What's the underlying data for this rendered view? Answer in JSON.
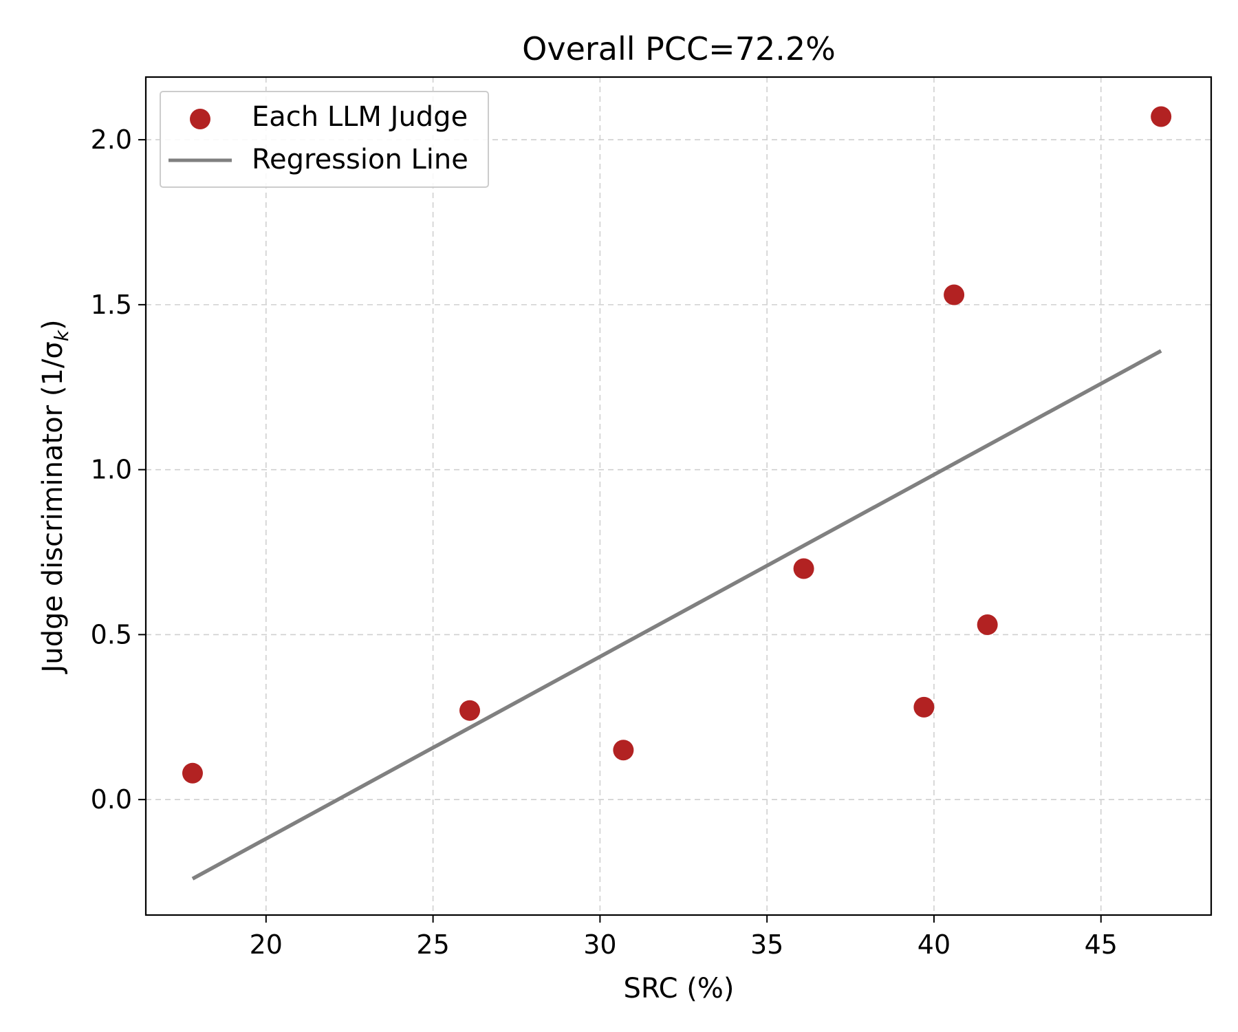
{
  "chart_data": {
    "type": "scatter",
    "title": "Overall PCC=72.2%",
    "xlabel": "SRC (%)",
    "ylabel": "Judge discriminator (1/σ",
    "ylabel_subscript": "k",
    "ylabel_suffix": ")",
    "xlim": [
      16.4,
      48.3
    ],
    "ylim": [
      -0.35,
      2.19
    ],
    "xticks": [
      20,
      25,
      30,
      35,
      40,
      45
    ],
    "yticks": [
      0.0,
      0.5,
      1.0,
      1.5,
      2.0
    ],
    "xtick_labels": [
      "20",
      "25",
      "30",
      "35",
      "40",
      "45"
    ],
    "ytick_labels": [
      "0.0",
      "0.5",
      "1.0",
      "1.5",
      "2.0"
    ],
    "grid": true,
    "series": [
      {
        "name": "Each LLM Judge",
        "kind": "scatter",
        "color": "#b22222",
        "x": [
          17.8,
          26.1,
          30.7,
          36.1,
          39.7,
          40.6,
          41.6,
          46.8
        ],
        "y": [
          0.08,
          0.27,
          0.15,
          0.7,
          0.28,
          1.53,
          0.53,
          2.07
        ]
      },
      {
        "name": "Regression Line",
        "kind": "line",
        "color": "#808080",
        "x": [
          17.8,
          46.8
        ],
        "y": [
          -0.24,
          1.36
        ]
      }
    ],
    "legend": {
      "placement": "top-left",
      "entries": [
        "Each LLM Judge",
        "Regression Line"
      ]
    }
  }
}
